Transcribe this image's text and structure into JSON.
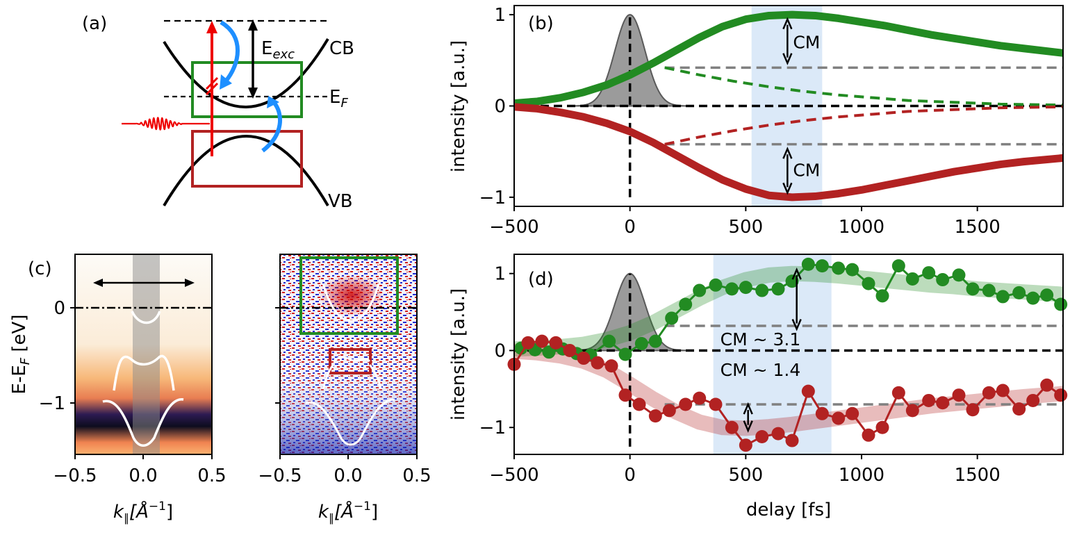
{
  "colors": {
    "green": "#228b22",
    "red": "#b22222",
    "gray": "#808080",
    "shade": "#cfe2f5",
    "pulse": "#7a7a7a",
    "blue_arrow": "#1e8fff",
    "pump_red": "#ee0000"
  },
  "schematic": {
    "label": "(a)",
    "exc_label": "E",
    "exc_sub": "exc",
    "cb_label": "CB",
    "ef_label": "E",
    "ef_sub": "F",
    "vb_label": "VB"
  },
  "panel_c": {
    "label": "(c)",
    "ylabel": "E-E",
    "ylabel_sub": "F",
    "ylabel_unit": " [eV]",
    "xlabel": "k",
    "xlabel_sub": "∥",
    "xlabel_unit": "[Å",
    "xlabel_exp": "−1",
    "xlabel_close": "]",
    "xticks": [
      "−0.5",
      "0.0",
      "0.5"
    ],
    "yticks": [
      "0",
      "−1"
    ]
  },
  "chart_data": [
    {
      "type": "line",
      "panel": "(b)",
      "ylabel": "intensity [a.u.]",
      "xlim": [
        -500,
        1870
      ],
      "ylim": [
        -1.1,
        1.1
      ],
      "xticks": [
        "−500",
        "0",
        "500",
        "1000",
        "1500"
      ],
      "yticks": [
        "1",
        "0",
        "−1"
      ],
      "shaded_region": [
        525,
        830
      ],
      "pump_pulse": {
        "center": 0,
        "sigma": 65,
        "amplitude": 1.0
      },
      "series": [
        {
          "name": "CB total",
          "color": "green",
          "style": "solid",
          "x": [
            -500,
            -400,
            -300,
            -200,
            -100,
            0,
            100,
            200,
            300,
            400,
            500,
            600,
            700,
            800,
            900,
            1000,
            1100,
            1200,
            1300,
            1400,
            1500,
            1600,
            1700,
            1870
          ],
          "y": [
            0.03,
            0.05,
            0.09,
            0.15,
            0.23,
            0.34,
            0.47,
            0.61,
            0.75,
            0.87,
            0.95,
            0.99,
            1.0,
            0.99,
            0.96,
            0.92,
            0.88,
            0.83,
            0.78,
            0.74,
            0.7,
            0.66,
            0.63,
            0.58
          ]
        },
        {
          "name": "CB decay",
          "color": "green",
          "style": "dashed",
          "x": [
            150,
            300,
            450,
            600,
            750,
            900,
            1050,
            1200,
            1400,
            1600,
            1870
          ],
          "y": [
            0.42,
            0.34,
            0.27,
            0.21,
            0.16,
            0.12,
            0.09,
            0.06,
            0.04,
            0.02,
            0.01
          ]
        },
        {
          "name": "VB total",
          "color": "red",
          "style": "solid",
          "x": [
            -500,
            -400,
            -300,
            -200,
            -100,
            0,
            100,
            200,
            300,
            400,
            500,
            600,
            700,
            800,
            900,
            1000,
            1100,
            1200,
            1300,
            1400,
            1500,
            1600,
            1700,
            1870
          ],
          "y": [
            -0.01,
            -0.03,
            -0.07,
            -0.12,
            -0.19,
            -0.28,
            -0.4,
            -0.54,
            -0.68,
            -0.81,
            -0.91,
            -0.98,
            -1.0,
            -0.99,
            -0.96,
            -0.92,
            -0.87,
            -0.82,
            -0.77,
            -0.72,
            -0.68,
            -0.64,
            -0.61,
            -0.57
          ]
        },
        {
          "name": "VB decay",
          "color": "red",
          "style": "dashed",
          "x": [
            150,
            300,
            450,
            600,
            750,
            900,
            1050,
            1200,
            1400,
            1600,
            1870
          ],
          "y": [
            -0.42,
            -0.34,
            -0.27,
            -0.21,
            -0.16,
            -0.12,
            -0.09,
            -0.06,
            -0.04,
            -0.02,
            -0.01
          ]
        }
      ],
      "guides": [
        {
          "color": "gray",
          "x": [
            150,
            1870
          ],
          "y": 0.42
        },
        {
          "color": "gray",
          "x": [
            150,
            1870
          ],
          "y": -0.42
        }
      ],
      "annotations": [
        {
          "text": "CM",
          "x": 680,
          "y": 0.7,
          "arrow": [
            0.47,
            0.95
          ]
        },
        {
          "text": "CM",
          "x": 680,
          "y": -0.7,
          "arrow": [
            -0.47,
            -0.95
          ]
        }
      ]
    },
    {
      "type": "scatter",
      "panel": "(d)",
      "ylabel": "intensity [a.u.]",
      "xlabel": "delay [fs]",
      "xlim": [
        -500,
        1870
      ],
      "ylim": [
        -1.35,
        1.25
      ],
      "xticks": [
        "−500",
        "0",
        "500",
        "1000",
        "1500"
      ],
      "yticks": [
        "1",
        "0",
        "−1"
      ],
      "shaded_region": [
        360,
        870
      ],
      "pump_pulse": {
        "center": 0,
        "sigma": 65,
        "amplitude": 1.0
      },
      "series": [
        {
          "name": "CB data",
          "color": "green",
          "x": [
            -470,
            -410,
            -350,
            -290,
            -230,
            -170,
            -90,
            -20,
            50,
            110,
            180,
            240,
            300,
            370,
            440,
            500,
            570,
            640,
            700,
            770,
            830,
            900,
            960,
            1030,
            1090,
            1160,
            1220,
            1290,
            1350,
            1420,
            1480,
            1550,
            1610,
            1680,
            1740,
            1800,
            1860
          ],
          "y": [
            0.03,
            0.01,
            -0.02,
            0.02,
            -0.04,
            -0.06,
            0.12,
            -0.05,
            0.09,
            0.12,
            0.42,
            0.6,
            0.78,
            0.85,
            0.8,
            0.82,
            0.78,
            0.8,
            0.9,
            1.12,
            1.1,
            1.07,
            1.05,
            0.87,
            0.71,
            1.1,
            0.93,
            1.01,
            0.92,
            0.98,
            0.8,
            0.78,
            0.7,
            0.75,
            0.68,
            0.72,
            0.6
          ]
        },
        {
          "name": "VB data",
          "color": "red",
          "x": [
            -500,
            -440,
            -380,
            -320,
            -260,
            -200,
            -140,
            -80,
            -20,
            40,
            110,
            170,
            240,
            300,
            370,
            440,
            500,
            570,
            640,
            700,
            770,
            830,
            900,
            960,
            1030,
            1090,
            1160,
            1220,
            1290,
            1350,
            1420,
            1480,
            1550,
            1610,
            1680,
            1740,
            1800,
            1860
          ],
          "y": [
            -0.18,
            0.1,
            0.12,
            0.1,
            0.0,
            -0.1,
            -0.16,
            -0.2,
            -0.58,
            -0.7,
            -0.85,
            -0.78,
            -0.7,
            -0.62,
            -0.7,
            -1.0,
            -1.23,
            -1.12,
            -1.08,
            -1.17,
            -0.53,
            -0.82,
            -0.88,
            -0.82,
            -1.1,
            -1.0,
            -0.55,
            -0.78,
            -0.65,
            -0.68,
            -0.58,
            -0.77,
            -0.55,
            -0.52,
            -0.76,
            -0.65,
            -0.45,
            -0.58
          ]
        },
        {
          "name": "CB fit",
          "color": "green",
          "style": "band",
          "x": [
            -500,
            -400,
            -300,
            -200,
            -100,
            0,
            100,
            200,
            300,
            400,
            500,
            600,
            700,
            800,
            900,
            1000,
            1100,
            1200,
            1300,
            1400,
            1500,
            1600,
            1700,
            1870
          ],
          "y": [
            0.02,
            0.03,
            0.05,
            0.08,
            0.14,
            0.23,
            0.36,
            0.52,
            0.68,
            0.82,
            0.92,
            0.98,
            1.0,
            0.99,
            0.97,
            0.94,
            0.91,
            0.88,
            0.85,
            0.83,
            0.8,
            0.78,
            0.76,
            0.73
          ]
        },
        {
          "name": "VB fit",
          "color": "red",
          "style": "band",
          "x": [
            -500,
            -400,
            -300,
            -200,
            -100,
            0,
            100,
            200,
            300,
            400,
            500,
            600,
            700,
            800,
            900,
            1000,
            1100,
            1200,
            1300,
            1400,
            1500,
            1600,
            1700,
            1870
          ],
          "y": [
            -0.01,
            -0.03,
            -0.07,
            -0.14,
            -0.26,
            -0.44,
            -0.63,
            -0.8,
            -0.93,
            -1.0,
            -1.01,
            -0.99,
            -0.96,
            -0.92,
            -0.88,
            -0.84,
            -0.8,
            -0.76,
            -0.72,
            -0.69,
            -0.66,
            -0.63,
            -0.6,
            -0.56
          ]
        }
      ],
      "guides": [
        {
          "color": "gray",
          "x": [
            150,
            1870
          ],
          "y": 0.32
        },
        {
          "color": "gray",
          "x": [
            150,
            1870
          ],
          "y": -0.7
        }
      ],
      "annotations": [
        {
          "text": "CM ~ 3.1",
          "x": 390,
          "y": 0.15,
          "arrow": [
            0.28,
            1.05
          ]
        },
        {
          "text": "CM ~ 1.4",
          "x": 390,
          "y": -0.25,
          "arrow": [
            -0.7,
            -1.04
          ]
        }
      ]
    }
  ]
}
